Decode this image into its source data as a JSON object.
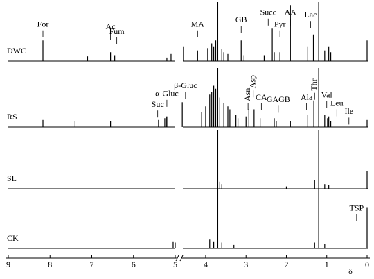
{
  "chart_data": {
    "type": "nmr-stack",
    "xlim": [
      9,
      0
    ],
    "axis_break": [
      4.95,
      4.6
    ],
    "xticks": [
      9,
      8,
      7,
      6,
      5,
      4,
      3,
      2,
      1,
      0
    ],
    "xlabel": "δ",
    "series": [
      {
        "name": "DWC",
        "color": "#000000",
        "x": [
          8.17,
          7.1,
          6.55,
          6.45,
          5.2,
          5.1,
          4.55,
          4.2,
          3.95,
          3.85,
          3.8,
          3.75,
          3.7,
          3.6,
          3.55,
          3.45,
          3.12,
          3.05,
          2.55,
          2.35,
          2.3,
          2.16,
          1.9,
          1.47,
          1.33,
          1.2,
          1.05,
          0.95,
          0.9,
          0
        ],
        "values": [
          35,
          8,
          15,
          10,
          6,
          12,
          25,
          18,
          22,
          30,
          25,
          35,
          100,
          20,
          15,
          12,
          35,
          10,
          10,
          55,
          15,
          15,
          95,
          25,
          45,
          100,
          18,
          25,
          15,
          35
        ],
        "annotations": [
          {
            "label": "For",
            "x": 8.17,
            "y": 52
          },
          {
            "label": "Ac",
            "x": 6.55,
            "y": 48
          },
          {
            "label": "Fum",
            "x": 6.4,
            "y": 40
          },
          {
            "label": "MA",
            "x": 4.2,
            "y": 52
          },
          {
            "label": "GB",
            "x": 3.12,
            "y": 60
          },
          {
            "label": "Succ",
            "x": 2.45,
            "y": 72
          },
          {
            "label": "Pyr",
            "x": 2.16,
            "y": 52
          },
          {
            "label": "AA",
            "x": 1.9,
            "y": 72
          },
          {
            "label": "Lac",
            "x": 1.4,
            "y": 68
          }
        ]
      },
      {
        "name": "RS",
        "color": "#000000",
        "x": [
          8.17,
          7.4,
          6.55,
          5.4,
          5.25,
          5.22,
          5.2,
          4.58,
          4.1,
          4.0,
          3.9,
          3.85,
          3.8,
          3.75,
          3.7,
          3.65,
          3.55,
          3.45,
          3.4,
          3.25,
          3.2,
          3.0,
          2.93,
          2.8,
          2.65,
          2.3,
          2.25,
          1.9,
          1.47,
          1.32,
          1.2,
          1.05,
          0.98,
          0.95,
          0.9,
          0
        ],
        "values": [
          12,
          10,
          10,
          12,
          15,
          18,
          18,
          42,
          25,
          35,
          55,
          60,
          70,
          65,
          100,
          50,
          40,
          35,
          30,
          20,
          15,
          18,
          30,
          30,
          15,
          15,
          10,
          10,
          20,
          45,
          100,
          20,
          15,
          18,
          10,
          12
        ],
        "annotations": [
          {
            "label": "Suc",
            "x": 5.42,
            "y": 28
          },
          {
            "label": "α-Gluc",
            "x": 5.2,
            "y": 46
          },
          {
            "label": "β-Gluc",
            "x": 4.5,
            "y": 60
          },
          {
            "label": "Asn",
            "x": 2.95,
            "y": 40,
            "orientation": "vertical"
          },
          {
            "label": "Asp",
            "x": 2.82,
            "y": 62,
            "orientation": "vertical"
          },
          {
            "label": "CA",
            "x": 2.62,
            "y": 40
          },
          {
            "label": "GAGB",
            "x": 2.2,
            "y": 36
          },
          {
            "label": "Ala",
            "x": 1.5,
            "y": 40
          },
          {
            "label": "Thr",
            "x": 1.3,
            "y": 58,
            "orientation": "vertical"
          },
          {
            "label": "Val",
            "x": 1.0,
            "y": 44
          },
          {
            "label": "Leu",
            "x": 0.75,
            "y": 30
          },
          {
            "label": "Ile",
            "x": 0.45,
            "y": 16
          }
        ]
      },
      {
        "name": "SL",
        "color": "#000000",
        "x": [
          3.7,
          3.65,
          3.6,
          2.0,
          1.3,
          1.2,
          1.05,
          0.95,
          0
        ],
        "values": [
          100,
          12,
          8,
          4,
          15,
          100,
          8,
          6,
          30
        ],
        "annotations": []
      },
      {
        "name": "CK",
        "color": "#000000",
        "x": [
          5.05,
          5.0,
          3.9,
          3.8,
          3.7,
          3.6,
          3.3,
          1.3,
          1.2,
          1.05,
          0
        ],
        "values": [
          12,
          10,
          15,
          12,
          100,
          10,
          6,
          10,
          100,
          8,
          70
        ],
        "annotations": [
          {
            "label": "TSP",
            "x": 0.26,
            "y": 58
          }
        ]
      }
    ]
  }
}
